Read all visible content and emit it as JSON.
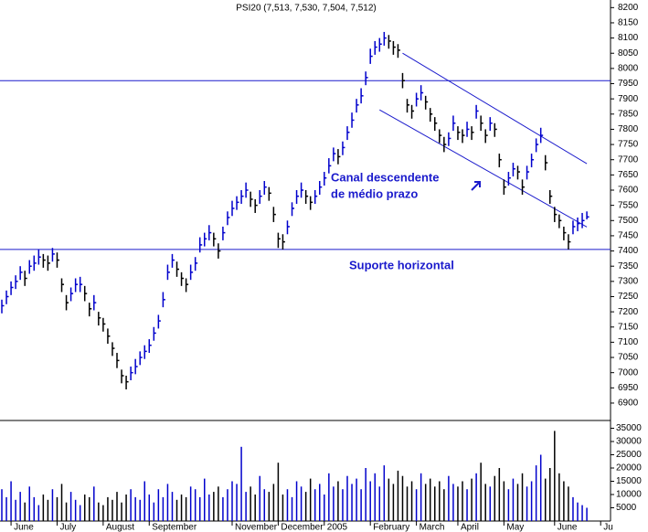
{
  "chart_data": {
    "type": "ohlc",
    "title": "PSI20 (7,513, 7,530, 7,504, 7,512)",
    "categories": [
      null,
      null,
      "June",
      null,
      null,
      null,
      null,
      null,
      null,
      null,
      null,
      null,
      "July",
      null,
      null,
      null,
      null,
      null,
      null,
      null,
      null,
      null,
      "August",
      null,
      null,
      null,
      null,
      null,
      null,
      null,
      null,
      null,
      "September",
      null,
      null,
      null,
      null,
      null,
      null,
      null,
      null,
      null,
      null,
      null,
      null,
      null,
      null,
      null,
      null,
      null,
      "November",
      null,
      null,
      null,
      null,
      null,
      null,
      null,
      null,
      null,
      "December",
      null,
      null,
      null,
      null,
      null,
      null,
      null,
      null,
      null,
      "2005",
      null,
      null,
      null,
      null,
      null,
      null,
      null,
      null,
      null,
      "February",
      null,
      null,
      null,
      null,
      null,
      null,
      null,
      null,
      null,
      "March",
      null,
      null,
      null,
      null,
      null,
      null,
      null,
      null,
      "April",
      null,
      null,
      null,
      null,
      null,
      null,
      null,
      null,
      null,
      "May",
      null,
      null,
      null,
      null,
      null,
      null,
      null,
      null,
      null,
      null,
      "June",
      null,
      null,
      null,
      null,
      null,
      null,
      null,
      null,
      null,
      "Ju"
    ],
    "high": [
      7240,
      7270,
      7300,
      7320,
      7350,
      7335,
      7370,
      7385,
      7405,
      7390,
      7385,
      7410,
      7395,
      7310,
      7255,
      7280,
      7310,
      7315,
      7285,
      7230,
      7255,
      7200,
      7180,
      7145,
      7100,
      7065,
      7010,
      6990,
      7020,
      7045,
      7070,
      7090,
      7110,
      7150,
      7190,
      7265,
      7355,
      7390,
      7365,
      7330,
      7310,
      7355,
      7380,
      7445,
      7460,
      7485,
      7460,
      7425,
      7480,
      7530,
      7565,
      7580,
      7600,
      7625,
      7595,
      7570,
      7600,
      7630,
      7610,
      7545,
      7460,
      7455,
      7500,
      7560,
      7600,
      7625,
      7600,
      7580,
      7600,
      7630,
      7660,
      7705,
      7740,
      7735,
      7760,
      7810,
      7855,
      7900,
      7935,
      7990,
      8065,
      8090,
      8100,
      8120,
      8110,
      8090,
      8080,
      7985,
      7900,
      7880,
      7920,
      7945,
      7910,
      7870,
      7840,
      7800,
      7775,
      7790,
      7845,
      7810,
      7800,
      7825,
      7810,
      7880,
      7845,
      7800,
      7840,
      7820,
      7720,
      7635,
      7660,
      7690,
      7680,
      7635,
      7680,
      7720,
      7770,
      7805,
      7715,
      7600,
      7545,
      7520,
      7480,
      7455,
      7500,
      7510,
      7525,
      7530,
      null,
      null,
      null
    ],
    "low": [
      7195,
      7225,
      7255,
      7275,
      7305,
      7285,
      7325,
      7335,
      7355,
      7345,
      7335,
      7365,
      7345,
      7265,
      7205,
      7235,
      7265,
      7265,
      7235,
      7185,
      7205,
      7155,
      7135,
      7095,
      7055,
      7015,
      6965,
      6945,
      6975,
      6995,
      7025,
      7045,
      7065,
      7105,
      7145,
      7215,
      7305,
      7345,
      7315,
      7285,
      7265,
      7305,
      7335,
      7395,
      7415,
      7435,
      7415,
      7375,
      7435,
      7485,
      7515,
      7535,
      7555,
      7575,
      7545,
      7525,
      7555,
      7585,
      7565,
      7495,
      7410,
      7405,
      7455,
      7515,
      7555,
      7575,
      7555,
      7535,
      7555,
      7585,
      7615,
      7655,
      7695,
      7685,
      7715,
      7765,
      7805,
      7855,
      7885,
      7945,
      8015,
      8045,
      8055,
      8075,
      8065,
      8045,
      8035,
      7935,
      7855,
      7835,
      7875,
      7895,
      7865,
      7825,
      7795,
      7755,
      7725,
      7745,
      7795,
      7765,
      7755,
      7775,
      7765,
      7835,
      7795,
      7755,
      7795,
      7775,
      7675,
      7585,
      7615,
      7645,
      7635,
      7585,
      7635,
      7675,
      7725,
      7755,
      7665,
      7555,
      7495,
      7475,
      7435,
      7405,
      7455,
      7465,
      7475,
      7504,
      null,
      null,
      null
    ],
    "close": [
      7220,
      7250,
      7280,
      7300,
      7330,
      7310,
      7350,
      7360,
      7380,
      7370,
      7360,
      7390,
      7370,
      7290,
      7230,
      7260,
      7290,
      7290,
      7260,
      7210,
      7230,
      7180,
      7160,
      7120,
      7080,
      7040,
      6990,
      6970,
      7000,
      7020,
      7050,
      7070,
      7090,
      7130,
      7170,
      7240,
      7330,
      7370,
      7340,
      7310,
      7290,
      7330,
      7360,
      7420,
      7440,
      7460,
      7440,
      7400,
      7460,
      7510,
      7540,
      7560,
      7580,
      7600,
      7570,
      7550,
      7580,
      7610,
      7590,
      7520,
      7440,
      7430,
      7480,
      7540,
      7580,
      7600,
      7580,
      7560,
      7580,
      7610,
      7640,
      7680,
      7720,
      7710,
      7740,
      7790,
      7830,
      7880,
      7910,
      7970,
      8040,
      8070,
      8080,
      8100,
      8090,
      8070,
      8060,
      7960,
      7880,
      7860,
      7900,
      7920,
      7890,
      7850,
      7820,
      7780,
      7750,
      7770,
      7820,
      7790,
      7780,
      7800,
      7790,
      7860,
      7820,
      7780,
      7820,
      7800,
      7700,
      7610,
      7640,
      7670,
      7660,
      7610,
      7660,
      7700,
      7750,
      7780,
      7690,
      7580,
      7520,
      7500,
      7460,
      7430,
      7480,
      7490,
      7500,
      7512,
      null,
      null,
      null
    ],
    "volume": [
      12000,
      9000,
      15000,
      8000,
      11000,
      7000,
      13000,
      9000,
      6000,
      10000,
      8000,
      12000,
      9000,
      14000,
      7000,
      11000,
      8000,
      6000,
      10000,
      9000,
      13000,
      7000,
      6000,
      9000,
      8000,
      11000,
      7000,
      10000,
      12000,
      9000,
      8000,
      15000,
      10000,
      7000,
      12000,
      9000,
      14000,
      11000,
      8000,
      10000,
      9000,
      13000,
      12000,
      9000,
      16000,
      10000,
      11000,
      13000,
      9000,
      12000,
      15000,
      14000,
      28000,
      11000,
      13000,
      10000,
      17000,
      12000,
      11000,
      14000,
      22000,
      10000,
      12000,
      9000,
      15000,
      13000,
      11000,
      16000,
      12000,
      14000,
      10000,
      18000,
      13000,
      15000,
      12000,
      17000,
      14000,
      16000,
      12000,
      20000,
      15000,
      18000,
      13000,
      21000,
      16000,
      14000,
      19000,
      17000,
      13000,
      15000,
      12000,
      18000,
      14000,
      16000,
      13000,
      15000,
      12000,
      17000,
      14000,
      13000,
      15000,
      12000,
      16000,
      18000,
      22000,
      14000,
      13000,
      17000,
      20000,
      15000,
      12000,
      16000,
      14000,
      18000,
      13000,
      15000,
      21000,
      25000,
      16000,
      20000,
      34000,
      18000,
      15000,
      13000,
      9000,
      7000,
      6000,
      5000,
      null,
      null,
      null
    ],
    "ylim": [
      6850,
      8225
    ],
    "yticks": [
      6900,
      6950,
      7000,
      7050,
      7100,
      7150,
      7200,
      7250,
      7300,
      7350,
      7400,
      7450,
      7500,
      7550,
      7600,
      7650,
      7700,
      7750,
      7800,
      7850,
      7900,
      7950,
      8000,
      8050,
      8100,
      8150,
      8200
    ],
    "vlim": [
      0,
      37000
    ],
    "vticks": [
      5000,
      10000,
      15000,
      20000,
      25000,
      30000,
      35000
    ],
    "hlines": [
      7960,
      7405
    ],
    "channel": [
      {
        "x": [
          87,
          127
        ],
        "y": [
          8050,
          7687
        ]
      },
      {
        "x": [
          82,
          127
        ],
        "y": [
          7864,
          7479
        ]
      }
    ],
    "annotations": [
      "Canal descendente",
      "de médio prazo",
      "Suporte horizontal"
    ],
    "up_color": "#0000cc",
    "down_color": "#000000",
    "line_color": "#1a1acc"
  }
}
